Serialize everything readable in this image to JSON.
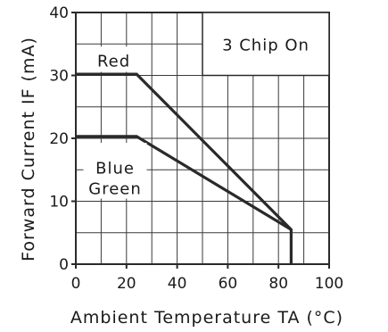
{
  "chart_data": {
    "type": "line",
    "title": "",
    "xlabel": "Ambient Temperature TA (°C)",
    "ylabel": "Forward Current IF (mA)",
    "xlim": [
      0,
      100
    ],
    "ylim": [
      0,
      40
    ],
    "x_ticks": [
      "0",
      "20",
      "40",
      "60",
      "80",
      "100"
    ],
    "y_ticks": [
      "0",
      "10",
      "20",
      "30",
      "40"
    ],
    "grid": true,
    "annotation": "3 Chip On",
    "series": [
      {
        "name": "Red",
        "color": "#2a2a2a",
        "points": [
          [
            0,
            30.2
          ],
          [
            24,
            30.2
          ],
          [
            85,
            5.5
          ],
          [
            85,
            0
          ]
        ]
      },
      {
        "name_lines": [
          "Blue",
          "Green"
        ],
        "color": "#2a2a2a",
        "points": [
          [
            0,
            20.3
          ],
          [
            24,
            20.3
          ],
          [
            85,
            5.5
          ]
        ]
      }
    ]
  }
}
